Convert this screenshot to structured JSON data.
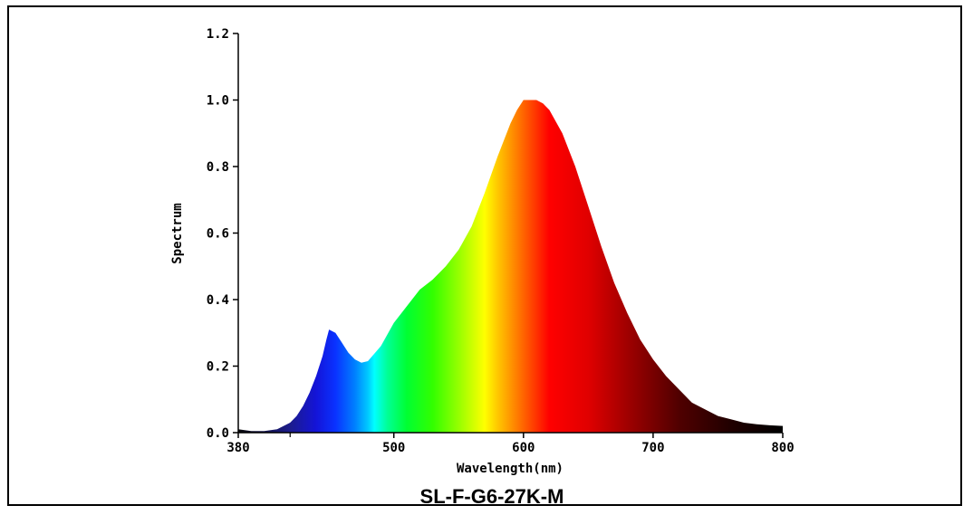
{
  "chart_data": {
    "type": "area",
    "title": "SL-F-G6-27K-M",
    "xlabel": "Wavelength(nm)",
    "ylabel": "Spectrum",
    "xlim": [
      380,
      800
    ],
    "ylim": [
      0,
      1.2
    ],
    "x_ticks": [
      380,
      500,
      600,
      700,
      800
    ],
    "x_tick_labels": [
      "380",
      "500",
      "600",
      "700",
      "800"
    ],
    "y_ticks": [
      0,
      0.2,
      0.4,
      0.6,
      0.8,
      1.0,
      1.2
    ],
    "y_tick_labels": [
      "0.0",
      "0.2",
      "0.4",
      "0.6",
      "0.8",
      "1.0",
      "1.2"
    ],
    "grid": false,
    "fill": "visible-spectrum gradient",
    "series": [
      {
        "x": [
          380,
          390,
          400,
          410,
          420,
          425,
          430,
          435,
          440,
          445,
          448,
          450,
          455,
          460,
          465,
          470,
          475,
          480,
          490,
          500,
          510,
          520,
          530,
          540,
          550,
          560,
          570,
          580,
          590,
          595,
          600,
          605,
          610,
          615,
          620,
          630,
          640,
          650,
          660,
          670,
          680,
          690,
          700,
          710,
          720,
          730,
          740,
          750,
          760,
          770,
          780,
          790,
          800
        ],
        "y": [
          0.01,
          0.005,
          0.005,
          0.01,
          0.03,
          0.05,
          0.08,
          0.12,
          0.17,
          0.23,
          0.28,
          0.31,
          0.3,
          0.27,
          0.24,
          0.22,
          0.21,
          0.215,
          0.26,
          0.33,
          0.38,
          0.43,
          0.46,
          0.5,
          0.55,
          0.62,
          0.72,
          0.83,
          0.93,
          0.97,
          1.0,
          1.0,
          1.0,
          0.99,
          0.97,
          0.9,
          0.8,
          0.68,
          0.56,
          0.45,
          0.36,
          0.28,
          0.22,
          0.17,
          0.13,
          0.09,
          0.07,
          0.05,
          0.04,
          0.03,
          0.025,
          0.022,
          0.02
        ]
      }
    ],
    "spectrum_colors": {
      "380": "#0a0a0a",
      "420": "#1c1c8c",
      "440": "#1414d8",
      "455": "#0a32ff",
      "470": "#0080ff",
      "480": "#00c8ff",
      "485": "#00ffff",
      "495": "#00ff96",
      "510": "#00ff32",
      "530": "#32ff00",
      "550": "#96ff00",
      "570": "#ffff00",
      "580": "#ffc800",
      "590": "#ff9600",
      "600": "#ff6400",
      "610": "#ff3200",
      "620": "#ff0000",
      "650": "#e00000",
      "680": "#a00000",
      "720": "#500000",
      "760": "#200000",
      "800": "#000000"
    }
  }
}
